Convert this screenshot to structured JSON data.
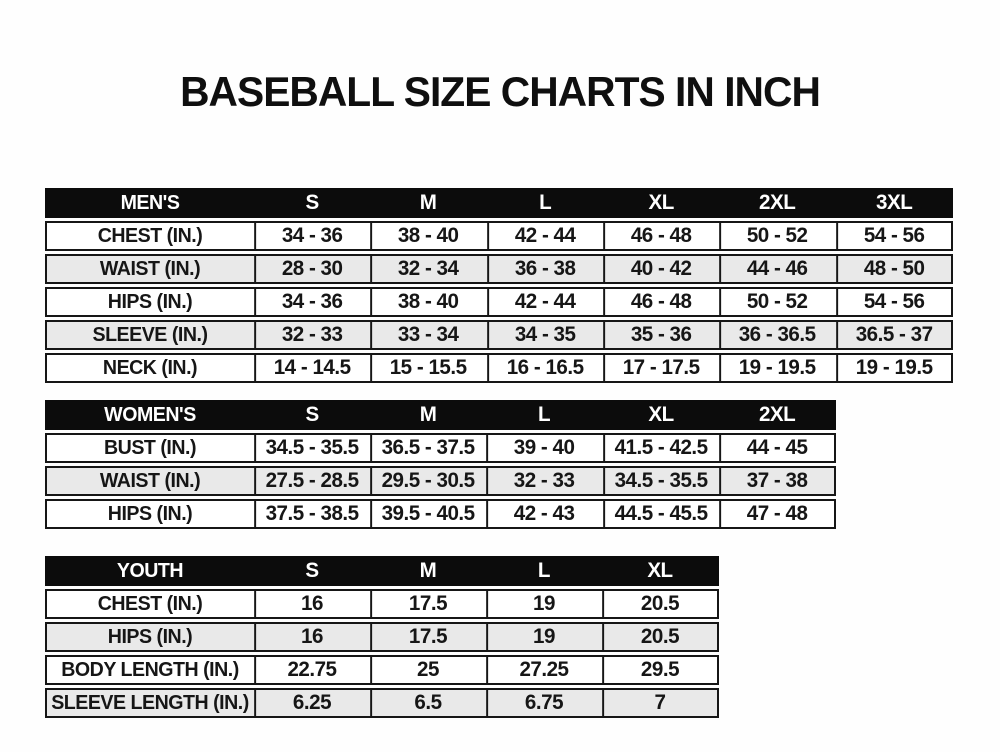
{
  "page": {
    "title": "BASEBALL SIZE CHARTS IN INCH"
  },
  "colors": {
    "header_bg": "#0c0c0c",
    "header_text": "#ffffff",
    "border": "#161616",
    "row_bg": "#ffffff",
    "row_alt_bg": "#e9e9e9",
    "text": "#161616"
  },
  "chart_data": [
    {
      "type": "table",
      "id": "mens",
      "title": "MEN'S",
      "columns": [
        "S",
        "M",
        "L",
        "XL",
        "2XL",
        "3XL"
      ],
      "rows": [
        {
          "label": "CHEST (IN.)",
          "values": [
            "34 - 36",
            "38 - 40",
            "42 - 44",
            "46 - 48",
            "50 - 52",
            "54 - 56"
          ]
        },
        {
          "label": "WAIST (IN.)",
          "values": [
            "28 - 30",
            "32 - 34",
            "36 - 38",
            "40 - 42",
            "44 - 46",
            "48 - 50"
          ]
        },
        {
          "label": "HIPS (IN.)",
          "values": [
            "34 - 36",
            "38 - 40",
            "42 - 44",
            "46 - 48",
            "50 - 52",
            "54 - 56"
          ]
        },
        {
          "label": "SLEEVE (IN.)",
          "values": [
            "32 - 33",
            "33 - 34",
            "34 - 35",
            "35 - 36",
            "36 - 36.5",
            "36.5 - 37"
          ]
        },
        {
          "label": "NECK (IN.)",
          "values": [
            "14 - 14.5",
            "15 - 15.5",
            "16 - 16.5",
            "17 - 17.5",
            "19 - 19.5",
            "19 - 19.5"
          ]
        }
      ]
    },
    {
      "type": "table",
      "id": "womens",
      "title": "WOMEN'S",
      "columns": [
        "S",
        "M",
        "L",
        "XL",
        "2XL"
      ],
      "rows": [
        {
          "label": "BUST (IN.)",
          "values": [
            "34.5 - 35.5",
            "36.5 - 37.5",
            "39 - 40",
            "41.5 - 42.5",
            "44 - 45"
          ]
        },
        {
          "label": "WAIST (IN.)",
          "values": [
            "27.5 - 28.5",
            "29.5 - 30.5",
            "32 - 33",
            "34.5 - 35.5",
            "37 - 38"
          ]
        },
        {
          "label": "HIPS (IN.)",
          "values": [
            "37.5 - 38.5",
            "39.5 - 40.5",
            "42 - 43",
            "44.5 - 45.5",
            "47 - 48"
          ]
        }
      ]
    },
    {
      "type": "table",
      "id": "youth",
      "title": "YOUTH",
      "columns": [
        "S",
        "M",
        "L",
        "XL"
      ],
      "rows": [
        {
          "label": "CHEST (IN.)",
          "values": [
            "16",
            "17.5",
            "19",
            "20.5"
          ]
        },
        {
          "label": "HIPS (IN.)",
          "values": [
            "16",
            "17.5",
            "19",
            "20.5"
          ]
        },
        {
          "label": "BODY LENGTH (IN.)",
          "values": [
            "22.75",
            "25",
            "27.25",
            "29.5"
          ]
        },
        {
          "label": "SLEEVE LENGTH (IN.)",
          "values": [
            "6.25",
            "6.5",
            "6.75",
            "7"
          ]
        }
      ]
    }
  ]
}
